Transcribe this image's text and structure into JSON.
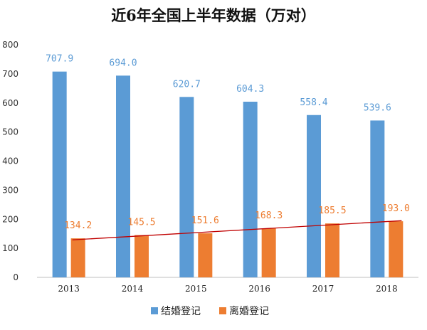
{
  "chart_data": {
    "type": "bar",
    "title": "近6年全国上半年数据（万对）",
    "categories": [
      "2013",
      "2014",
      "2015",
      "2016",
      "2017",
      "2018"
    ],
    "series": [
      {
        "name": "结婚登记",
        "color": "#5b9bd5",
        "values": [
          707.9,
          694.0,
          620.7,
          604.3,
          558.4,
          539.6
        ],
        "labels": [
          "707.9",
          "694.0",
          "620.7",
          "604.3",
          "558.4",
          "539.6"
        ]
      },
      {
        "name": "离婚登记",
        "color": "#ed7d31",
        "values": [
          134.2,
          145.5,
          151.6,
          168.3,
          185.5,
          193.0
        ],
        "labels": [
          "134.2",
          "145.5",
          "151.6",
          "168.3",
          "185.5",
          "193.0"
        ]
      }
    ],
    "ylim": [
      0,
      800
    ],
    "yticks": [
      "0",
      "100",
      "200",
      "300",
      "400",
      "500",
      "600",
      "700",
      "800"
    ],
    "trendline": {
      "series": "离婚登记",
      "color": "#c00000",
      "from": 129,
      "to": 195
    },
    "grid": false,
    "legend": "bottom"
  }
}
